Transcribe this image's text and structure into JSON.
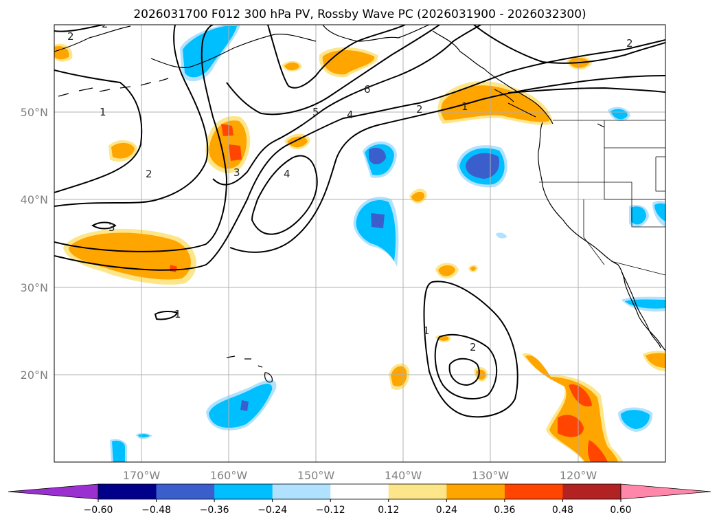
{
  "title": "2026031700 F012 300 hPa PV, Rossby Wave PC (2026031900 - 2026032300)",
  "lat_labels": [
    "50°N",
    "40°N",
    "30°N",
    "20°N"
  ],
  "lon_labels": [
    "170°W",
    "160°W",
    "150°W",
    "140°W",
    "130°W",
    "120°W"
  ],
  "map": {
    "extent": {
      "lon_min": -180,
      "lon_max": -110,
      "lat_min": 10,
      "lat_max": 60
    },
    "gridlines": true
  },
  "colorbar": {
    "ticks": [
      "−0.60",
      "−0.48",
      "−0.36",
      "−0.24",
      "−0.12",
      "0.12",
      "0.24",
      "0.36",
      "0.48",
      "0.60"
    ],
    "colors": [
      "#9b30d0",
      "#00008b",
      "#3a5fcd",
      "#00bfff",
      "#b0e2ff",
      "#ffffff",
      "#fde68a",
      "#ffa500",
      "#ff4500",
      "#b22222",
      "#ff88aa"
    ],
    "extend": "both"
  },
  "contour_labels": [
    "2",
    "2",
    "1",
    "2",
    "3",
    "4",
    "5",
    "6",
    "4",
    "2",
    "1",
    "2",
    "3",
    "1",
    "1",
    "2"
  ],
  "colors": {
    "warm_light": "#fde68a",
    "warm": "#ffa500",
    "warm_strong": "#ff4500",
    "cold_light": "#b0e2ff",
    "cold": "#00bfff",
    "cold_strong": "#3a5fcd"
  }
}
